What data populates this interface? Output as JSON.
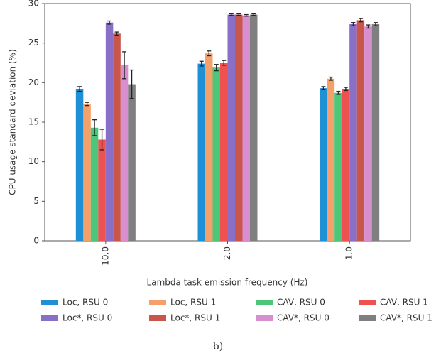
{
  "chart_data": {
    "type": "bar",
    "y_label": "CPU usage standard deviation (%)",
    "x_label": "Lambda task emission frequency (Hz)",
    "caption": "b)",
    "categories": [
      "10.0",
      "2.0",
      "1.0"
    ],
    "ylim": [
      0,
      30
    ],
    "yticks": [
      0,
      5,
      10,
      15,
      20,
      25,
      30
    ],
    "series": [
      {
        "name": "Loc, RSU 0",
        "color": "#1f8fd6",
        "values": [
          19.2,
          22.4,
          19.3
        ],
        "errors": [
          0.3,
          0.3,
          0.2
        ]
      },
      {
        "name": "Loc, RSU 1",
        "color": "#f4a06a",
        "values": [
          17.3,
          23.7,
          20.5
        ],
        "errors": [
          0.2,
          0.3,
          0.2
        ]
      },
      {
        "name": "CAV, RSU 0",
        "color": "#4cc77a",
        "values": [
          14.3,
          21.9,
          18.7
        ],
        "errors": [
          1.0,
          0.4,
          0.2
        ]
      },
      {
        "name": "CAV, RSU 1",
        "color": "#ef5050",
        "values": [
          12.8,
          22.5,
          19.2
        ],
        "errors": [
          1.3,
          0.3,
          0.2
        ]
      },
      {
        "name": "Loc*, RSU 0",
        "color": "#8a6fc9",
        "values": [
          27.6,
          28.6,
          27.4
        ],
        "errors": [
          0.2,
          0.1,
          0.2
        ]
      },
      {
        "name": "Loc*, RSU 1",
        "color": "#c9564a",
        "values": [
          26.2,
          28.6,
          27.9
        ],
        "errors": [
          0.2,
          0.1,
          0.2
        ]
      },
      {
        "name": "CAV*, RSU 0",
        "color": "#d88fd0",
        "values": [
          22.2,
          28.5,
          27.1
        ],
        "errors": [
          1.7,
          0.1,
          0.2
        ]
      },
      {
        "name": "CAV*, RSU 1",
        "color": "#7f7f7f",
        "values": [
          19.8,
          28.6,
          27.4
        ],
        "errors": [
          1.8,
          0.1,
          0.2
        ]
      }
    ]
  }
}
